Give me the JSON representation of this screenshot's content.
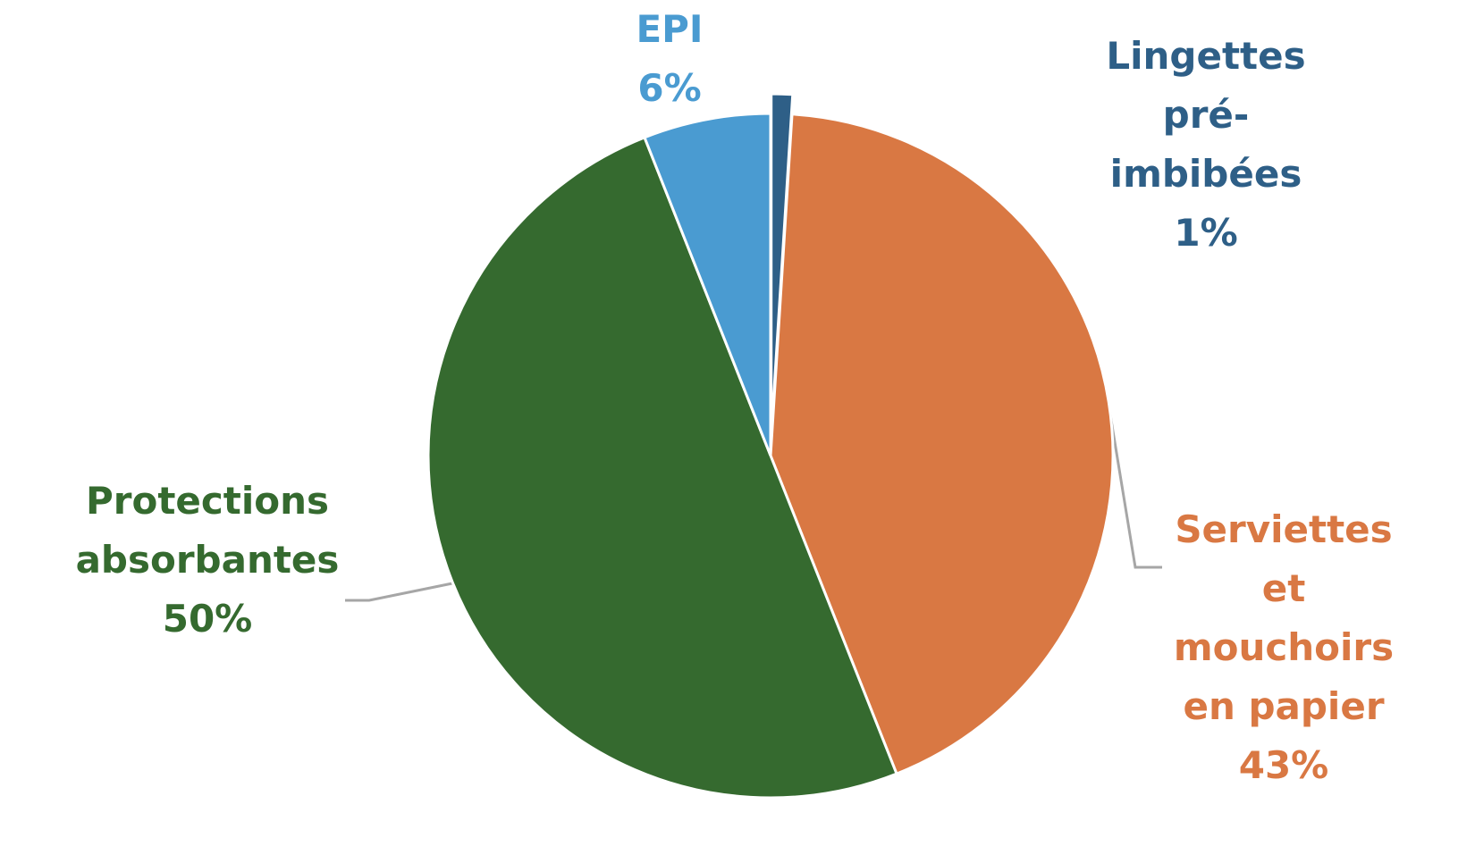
{
  "chart_data": {
    "type": "pie",
    "categories": [
      "Lingettes pré-imbibées",
      "Serviettes et mouchoirs en papier",
      "Protections absorbantes",
      "EPI"
    ],
    "values": [
      1,
      43,
      50,
      6
    ],
    "value_labels": [
      "1%",
      "43%",
      "50%",
      "6%"
    ],
    "colors": [
      "#2e5f87",
      "#d97843",
      "#356a2f",
      "#4a9bd1"
    ],
    "exploded": [
      true,
      false,
      false,
      false
    ]
  }
}
